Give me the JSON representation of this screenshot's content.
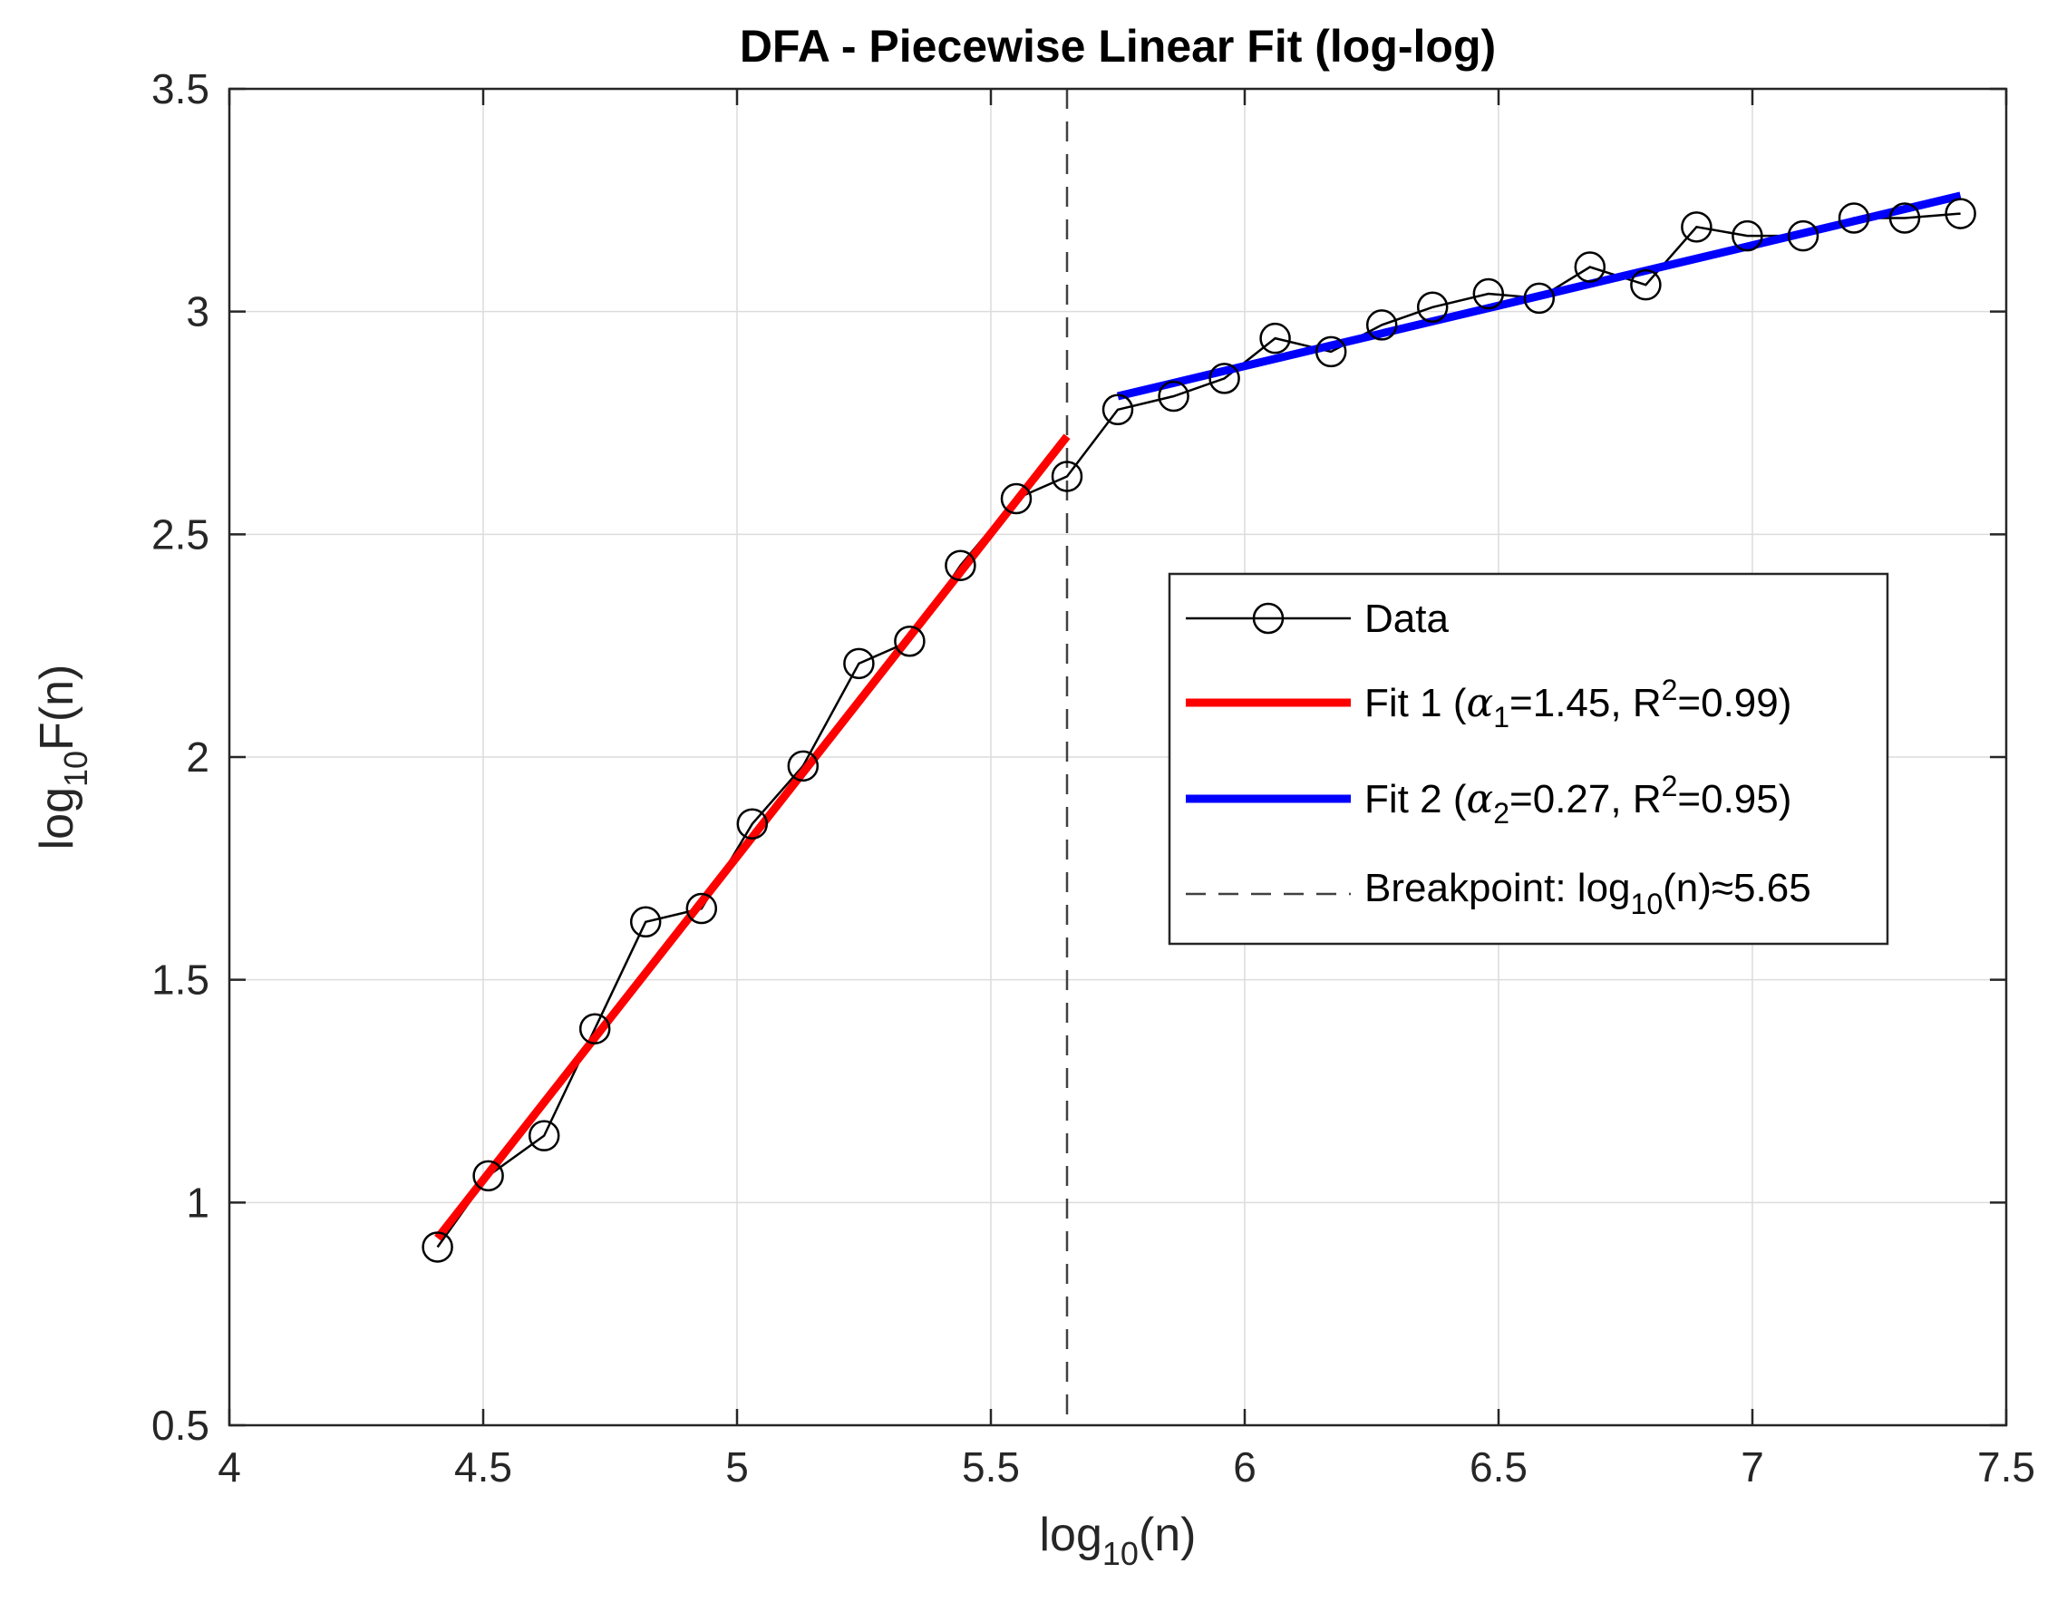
{
  "chart_data": {
    "type": "line",
    "title": "DFA - Piecewise Linear Fit (log-log)",
    "xlabel": {
      "base": "log",
      "sub": "10",
      "rest": "(n)"
    },
    "ylabel": {
      "base": "log",
      "sub": "10",
      "rest": "F(n)"
    },
    "xlim": [
      4,
      7.5
    ],
    "ylim": [
      0.5,
      3.5
    ],
    "xticks": [
      4,
      4.5,
      5,
      5.5,
      6,
      6.5,
      7,
      7.5
    ],
    "xtick_labels": [
      "4",
      "4.5",
      "5",
      "5.5",
      "6",
      "6.5",
      "7",
      "7.5"
    ],
    "yticks": [
      0.5,
      1,
      1.5,
      2,
      2.5,
      3,
      3.5
    ],
    "ytick_labels": [
      "0.5",
      "1",
      "1.5",
      "2",
      "2.5",
      "3",
      "3.5"
    ],
    "grid": true,
    "legend_position": "center-right",
    "series": [
      {
        "name": "Data",
        "kind": "line-marker",
        "color": "#000000",
        "marker": "circle",
        "x": [
          4.41,
          4.51,
          4.62,
          4.72,
          4.82,
          4.93,
          5.03,
          5.13,
          5.24,
          5.34,
          5.44,
          5.55,
          5.65,
          5.75,
          5.86,
          5.96,
          6.06,
          6.17,
          6.27,
          6.37,
          6.48,
          6.58,
          6.68,
          6.79,
          6.89,
          6.99,
          7.1,
          7.2,
          7.3,
          7.41
        ],
        "y": [
          0.9,
          1.06,
          1.15,
          1.39,
          1.63,
          1.66,
          1.85,
          1.98,
          2.21,
          2.26,
          2.43,
          2.58,
          2.63,
          2.78,
          2.81,
          2.85,
          2.94,
          2.91,
          2.97,
          3.01,
          3.04,
          3.03,
          3.1,
          3.06,
          3.19,
          3.17,
          3.17,
          3.21,
          3.21,
          3.22
        ]
      },
      {
        "name": "Fit 1",
        "kind": "fit-line",
        "color": "#ff0000",
        "x": [
          4.41,
          5.65
        ],
        "y": [
          0.92,
          2.72
        ],
        "alpha_symbol": "α",
        "alpha_index": "1",
        "alpha": "1.45",
        "r2": "0.99"
      },
      {
        "name": "Fit 2",
        "kind": "fit-line",
        "color": "#0000ff",
        "x": [
          5.75,
          7.41
        ],
        "y": [
          2.81,
          3.26
        ],
        "alpha_symbol": "α",
        "alpha_index": "2",
        "alpha": "0.27",
        "r2": "0.95"
      }
    ],
    "breakpoint": {
      "x": 5.65,
      "label_prefix": "Breakpoint: log",
      "label_sub": "10",
      "label_suffix": "(n)≈5.65"
    },
    "legend": {
      "data_label": "Data",
      "fit_prefix": "Fit",
      "r_letter": "R",
      "r_exponent": "2"
    },
    "colors": {
      "grid": "#dcdcdc",
      "axis": "#262626",
      "breakpoint": "#404040"
    }
  }
}
